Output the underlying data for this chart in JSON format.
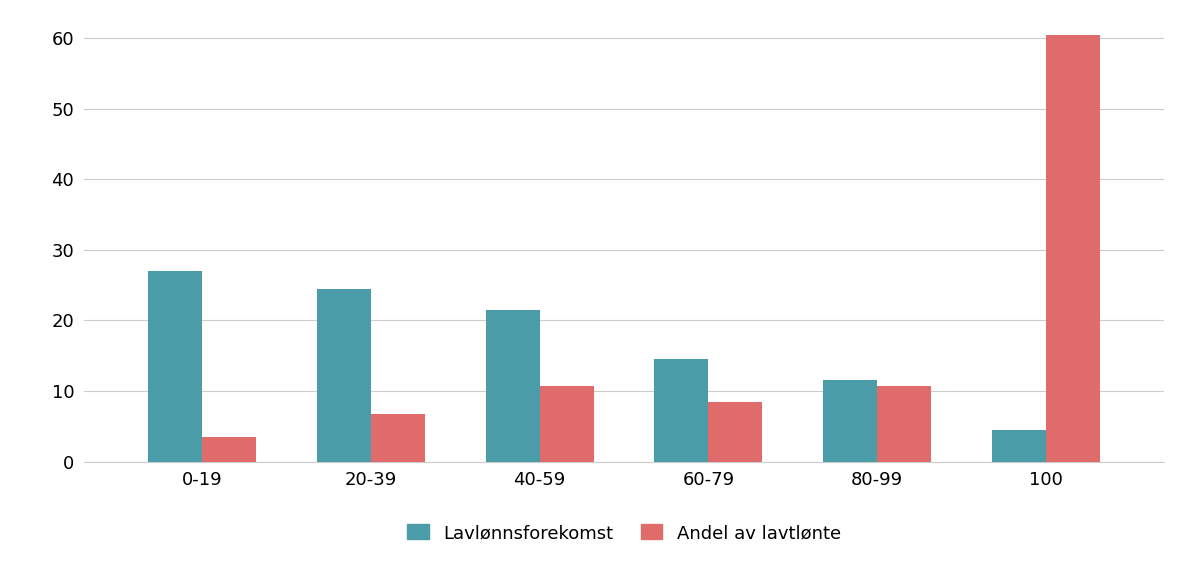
{
  "categories": [
    "0-19",
    "20-39",
    "40-59",
    "60-79",
    "80-99",
    "100"
  ],
  "lavlonnsforekomst": [
    27,
    24.5,
    21.5,
    14.5,
    11.5,
    4.5
  ],
  "andel_av_lavtlonte": [
    3.5,
    6.7,
    10.7,
    8.5,
    10.7,
    60.5
  ],
  "color_teal": "#4a9da8",
  "color_salmon": "#e06b6b",
  "legend_label_1": "Lavlønnsforekomst",
  "legend_label_2": "Andel av lavtlønte",
  "yticks": [
    0,
    10,
    20,
    30,
    40,
    50,
    60
  ],
  "ylim": [
    0,
    63
  ],
  "background_color": "#ffffff",
  "grid_color": "#cccccc",
  "bar_width": 0.32,
  "tick_fontsize": 13,
  "legend_fontsize": 13
}
